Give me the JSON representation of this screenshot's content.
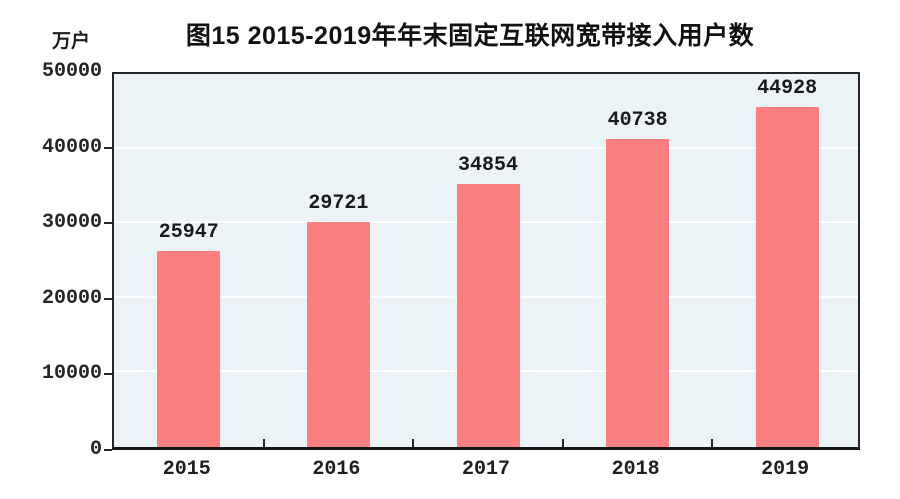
{
  "chart_data": {
    "type": "bar",
    "title": "图15 2015-2019年年末固定互联网宽带接入用户数",
    "unit": "万户",
    "categories": [
      "2015",
      "2016",
      "2017",
      "2018",
      "2019"
    ],
    "values": [
      25947,
      29721,
      34854,
      40738,
      44928
    ],
    "data_labels": [
      "25947",
      "29721",
      "34854",
      "40738",
      "44928"
    ],
    "xlabel": "",
    "ylabel": "万户",
    "ylim": [
      0,
      50000
    ],
    "yticks": [
      0,
      10000,
      20000,
      30000,
      40000,
      50000
    ],
    "ytick_labels": [
      "0",
      "10000",
      "20000",
      "30000",
      "40000",
      "50000"
    ],
    "grid": "horizontal",
    "legend": "none"
  },
  "colors": {
    "bar": "#FA8080",
    "plot_background": "#EBF3F6",
    "gridline": "#FFFFFF",
    "axis": "#262626",
    "text": "#1A1A1A"
  }
}
